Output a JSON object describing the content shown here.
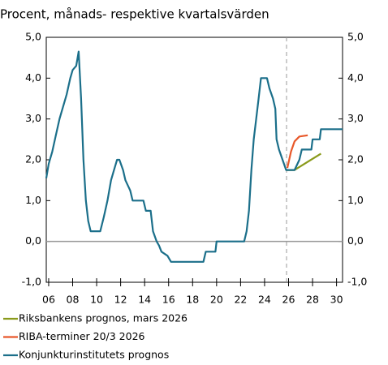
{
  "chart_data": {
    "type": "line",
    "title": "Procent, månads- respektive kvartalsvärden",
    "xlim": [
      2005.8,
      2030.5
    ],
    "ylim": [
      -1,
      5
    ],
    "xticks": [
      {
        "value": 2006,
        "label": "06"
      },
      {
        "value": 2008,
        "label": "08"
      },
      {
        "value": 2010,
        "label": "10"
      },
      {
        "value": 2012,
        "label": "12"
      },
      {
        "value": 2014,
        "label": "14"
      },
      {
        "value": 2016,
        "label": "16"
      },
      {
        "value": 2018,
        "label": "18"
      },
      {
        "value": 2020,
        "label": "20"
      },
      {
        "value": 2022,
        "label": "22"
      },
      {
        "value": 2024,
        "label": "24"
      },
      {
        "value": 2026,
        "label": "26"
      },
      {
        "value": 2028,
        "label": "28"
      },
      {
        "value": 2030,
        "label": "30"
      }
    ],
    "yticks": [
      {
        "value": -1,
        "label": "-1,0"
      },
      {
        "value": 0,
        "label": "0,0"
      },
      {
        "value": 1,
        "label": "1,0"
      },
      {
        "value": 2,
        "label": "2,0"
      },
      {
        "value": 3,
        "label": "3,0"
      },
      {
        "value": 4,
        "label": "4,0"
      },
      {
        "value": 5,
        "label": "5,0"
      }
    ],
    "series": [
      {
        "name": "Riksbankens prognos, mars 2026",
        "color": "#8a9a1b",
        "x": [
          2025.8,
          2026.5,
          2028.7
        ],
        "values": [
          1.75,
          1.75,
          2.15
        ]
      },
      {
        "name": "RIBA-terminer 20/3 2026",
        "color": "#e8582a",
        "x": [
          2025.9,
          2026.2,
          2026.5,
          2026.9,
          2027.6
        ],
        "values": [
          1.8,
          2.2,
          2.45,
          2.57,
          2.6
        ]
      },
      {
        "name": "Konjunkturinstitutets prognos",
        "color": "#1b6f8a",
        "x": [
          2005.8,
          2006.0,
          2006.3,
          2006.6,
          2006.9,
          2007.2,
          2007.5,
          2007.8,
          2008.0,
          2008.3,
          2008.5,
          2008.7,
          2008.9,
          2009.1,
          2009.3,
          2009.5,
          2010.3,
          2010.6,
          2010.9,
          2011.2,
          2011.5,
          2011.7,
          2011.9,
          2012.2,
          2012.4,
          2012.8,
          2013.0,
          2013.9,
          2014.1,
          2014.5,
          2014.7,
          2015.0,
          2015.2,
          2015.4,
          2015.9,
          2016.2,
          2018.9,
          2019.1,
          2019.9,
          2020.0,
          2022.3,
          2022.5,
          2022.7,
          2022.9,
          2023.1,
          2023.3,
          2023.5,
          2023.7,
          2024.2,
          2024.4,
          2024.7,
          2024.9,
          2025.0,
          2025.2,
          2025.5,
          2025.8,
          2026.5,
          2026.9,
          2027.1,
          2027.9,
          2028.0,
          2028.6,
          2028.7,
          2030.5
        ],
        "values": [
          1.55,
          1.9,
          2.2,
          2.6,
          3.0,
          3.3,
          3.6,
          4.0,
          4.2,
          4.3,
          4.65,
          3.5,
          2.0,
          1.0,
          0.5,
          0.25,
          0.25,
          0.6,
          1.0,
          1.5,
          1.8,
          2.0,
          2.0,
          1.75,
          1.5,
          1.25,
          1.0,
          1.0,
          0.75,
          0.75,
          0.25,
          0.0,
          -0.1,
          -0.25,
          -0.35,
          -0.5,
          -0.5,
          -0.25,
          -0.25,
          0.0,
          0.0,
          0.25,
          0.75,
          1.75,
          2.5,
          3.0,
          3.5,
          4.0,
          4.0,
          3.75,
          3.5,
          3.25,
          2.5,
          2.25,
          2.0,
          1.75,
          1.75,
          2.0,
          2.25,
          2.25,
          2.5,
          2.5,
          2.75,
          2.75
        ]
      }
    ]
  }
}
